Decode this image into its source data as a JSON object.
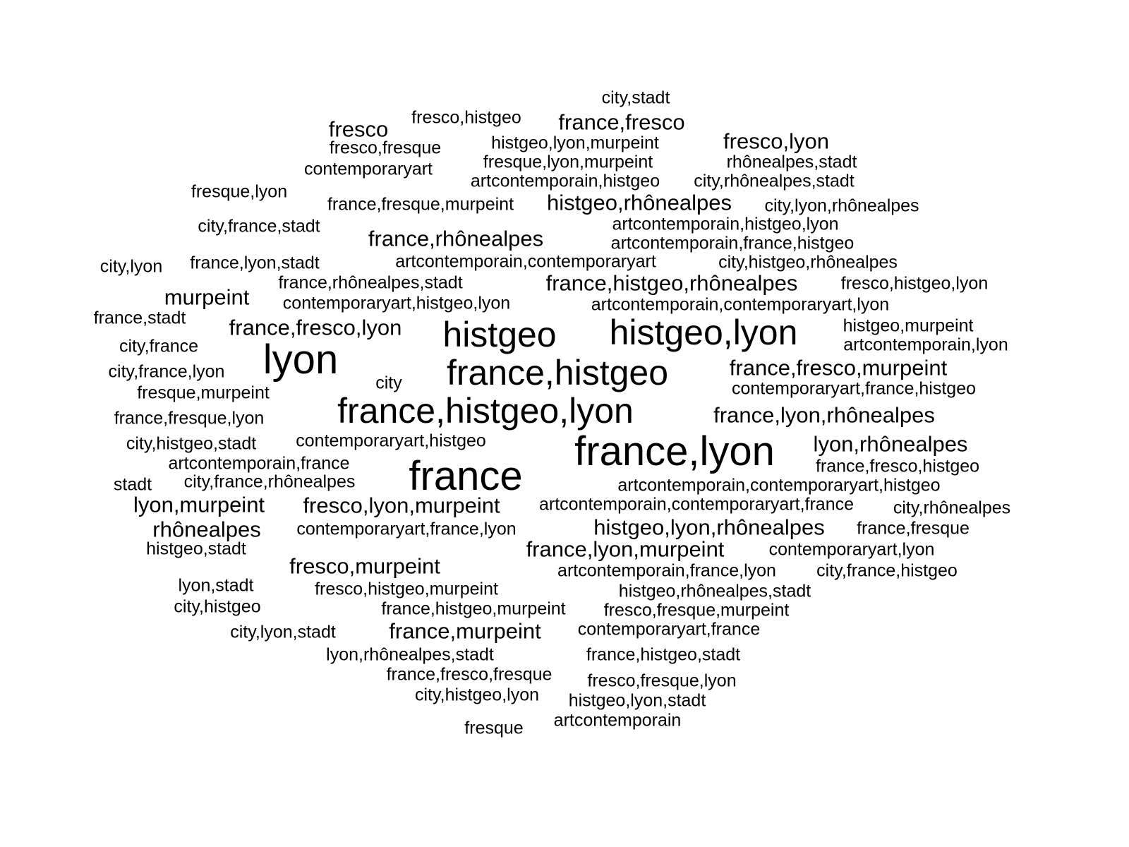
{
  "text_color": "#000000",
  "background_color": "#ffffff",
  "words": [
    {
      "text": "city,stadt",
      "weight": 2
    },
    {
      "text": "fresco",
      "weight": 3
    },
    {
      "text": "fresco,histgeo",
      "weight": 2
    },
    {
      "text": "france,fresco",
      "weight": 3
    },
    {
      "text": "histgeo,lyon,murpeint",
      "weight": 2
    },
    {
      "text": "fresco,lyon",
      "weight": 3
    },
    {
      "text": "fresco,fresque",
      "weight": 2
    },
    {
      "text": "fresque,lyon,murpeint",
      "weight": 2
    },
    {
      "text": "rhônealpes,stadt",
      "weight": 2
    },
    {
      "text": "contemporaryart",
      "weight": 2
    },
    {
      "text": "artcontemporain,histgeo",
      "weight": 2
    },
    {
      "text": "city,rhônealpes,stadt",
      "weight": 2
    },
    {
      "text": "fresque,lyon",
      "weight": 2
    },
    {
      "text": "france,fresque,murpeint",
      "weight": 2
    },
    {
      "text": "histgeo,rhônealpes",
      "weight": 3
    },
    {
      "text": "city,lyon,rhônealpes",
      "weight": 2
    },
    {
      "text": "city,france,stadt",
      "weight": 2
    },
    {
      "text": "artcontemporain,histgeo,lyon",
      "weight": 2
    },
    {
      "text": "france,rhônealpes",
      "weight": 3
    },
    {
      "text": "artcontemporain,france,histgeo",
      "weight": 2
    },
    {
      "text": "city,lyon",
      "weight": 2
    },
    {
      "text": "france,lyon,stadt",
      "weight": 2
    },
    {
      "text": "artcontemporain,contemporaryart",
      "weight": 2
    },
    {
      "text": "city,histgeo,rhônealpes",
      "weight": 2
    },
    {
      "text": "france,rhônealpes,stadt",
      "weight": 2
    },
    {
      "text": "france,histgeo,rhônealpes",
      "weight": 3
    },
    {
      "text": "fresco,histgeo,lyon",
      "weight": 2
    },
    {
      "text": "murpeint",
      "weight": 3
    },
    {
      "text": "contemporaryart,histgeo,lyon",
      "weight": 2
    },
    {
      "text": "artcontemporain,contemporaryart,lyon",
      "weight": 2
    },
    {
      "text": "france,stadt",
      "weight": 2
    },
    {
      "text": "france,fresco,lyon",
      "weight": 3
    },
    {
      "text": "histgeo",
      "weight": 6
    },
    {
      "text": "histgeo,lyon",
      "weight": 6
    },
    {
      "text": "histgeo,murpeint",
      "weight": 2
    },
    {
      "text": "city,france",
      "weight": 2
    },
    {
      "text": "artcontemporain,lyon",
      "weight": 2
    },
    {
      "text": "lyon",
      "weight": 7
    },
    {
      "text": "france,histgeo",
      "weight": 6
    },
    {
      "text": "france,fresco,murpeint",
      "weight": 3
    },
    {
      "text": "city,france,lyon",
      "weight": 2
    },
    {
      "text": "city",
      "weight": 2
    },
    {
      "text": "contemporaryart,france,histgeo",
      "weight": 2
    },
    {
      "text": "fresque,murpeint",
      "weight": 2
    },
    {
      "text": "france,histgeo,lyon",
      "weight": 6
    },
    {
      "text": "france,fresque,lyon",
      "weight": 2
    },
    {
      "text": "france,lyon,rhônealpes",
      "weight": 3
    },
    {
      "text": "city,histgeo,stadt",
      "weight": 2
    },
    {
      "text": "contemporaryart,histgeo",
      "weight": 2
    },
    {
      "text": "france,lyon",
      "weight": 7
    },
    {
      "text": "lyon,rhônealpes",
      "weight": 3
    },
    {
      "text": "artcontemporain,france",
      "weight": 2
    },
    {
      "text": "france",
      "weight": 7
    },
    {
      "text": "france,fresco,histgeo",
      "weight": 2
    },
    {
      "text": "stadt",
      "weight": 2
    },
    {
      "text": "city,france,rhônealpes",
      "weight": 2
    },
    {
      "text": "artcontemporain,contemporaryart,histgeo",
      "weight": 2
    },
    {
      "text": "lyon,murpeint",
      "weight": 3
    },
    {
      "text": "fresco,lyon,murpeint",
      "weight": 3
    },
    {
      "text": "artcontemporain,contemporaryart,france",
      "weight": 2
    },
    {
      "text": "city,rhônealpes",
      "weight": 2
    },
    {
      "text": "rhônealpes",
      "weight": 3
    },
    {
      "text": "contemporaryart,france,lyon",
      "weight": 2
    },
    {
      "text": "histgeo,lyon,rhônealpes",
      "weight": 3
    },
    {
      "text": "france,fresque",
      "weight": 2
    },
    {
      "text": "histgeo,stadt",
      "weight": 2
    },
    {
      "text": "france,lyon,murpeint",
      "weight": 3
    },
    {
      "text": "contemporaryart,lyon",
      "weight": 2
    },
    {
      "text": "fresco,murpeint",
      "weight": 3
    },
    {
      "text": "artcontemporain,france,lyon",
      "weight": 2
    },
    {
      "text": "city,france,histgeo",
      "weight": 2
    },
    {
      "text": "lyon,stadt",
      "weight": 2
    },
    {
      "text": "fresco,histgeo,murpeint",
      "weight": 2
    },
    {
      "text": "histgeo,rhônealpes,stadt",
      "weight": 2
    },
    {
      "text": "city,histgeo",
      "weight": 2
    },
    {
      "text": "france,histgeo,murpeint",
      "weight": 2
    },
    {
      "text": "fresco,fresque,murpeint",
      "weight": 2
    },
    {
      "text": "city,lyon,stadt",
      "weight": 2
    },
    {
      "text": "france,murpeint",
      "weight": 3
    },
    {
      "text": "contemporaryart,france",
      "weight": 2
    },
    {
      "text": "lyon,rhônealpes,stadt",
      "weight": 2
    },
    {
      "text": "france,histgeo,stadt",
      "weight": 2
    },
    {
      "text": "france,fresco,fresque",
      "weight": 2
    },
    {
      "text": "fresco,fresque,lyon",
      "weight": 2
    },
    {
      "text": "city,histgeo,lyon",
      "weight": 2
    },
    {
      "text": "histgeo,lyon,stadt",
      "weight": 2
    },
    {
      "text": "fresque",
      "weight": 2
    },
    {
      "text": "artcontemporain",
      "weight": 2
    }
  ]
}
